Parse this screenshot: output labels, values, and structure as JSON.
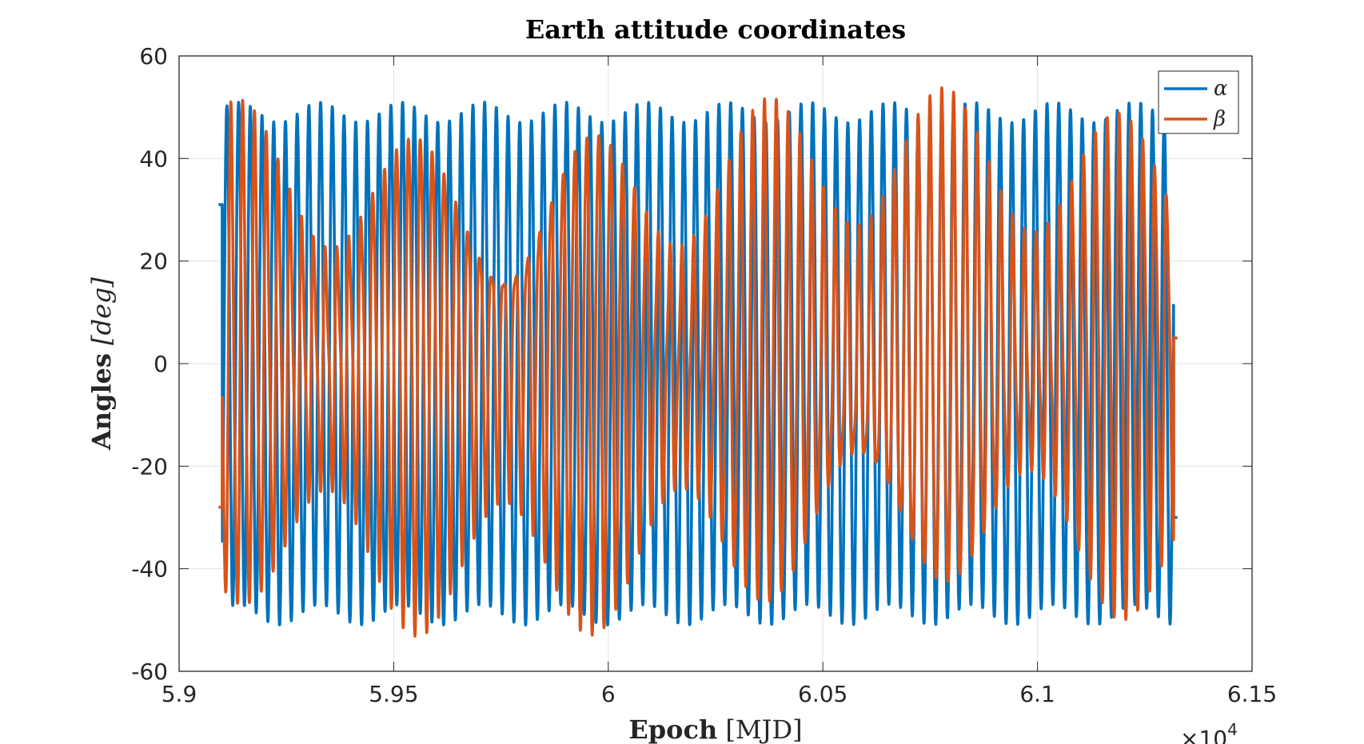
{
  "chart_data": {
    "type": "line",
    "title": "Earth attitude coordinates",
    "xlabel": {
      "bold": "Epoch",
      "rest": " [MJD]"
    },
    "ylabel": {
      "bold": "Angles",
      "rest": " [deg]"
    },
    "xlim": [
      59000,
      61500
    ],
    "ylim": [
      -60,
      60
    ],
    "x_exponent_label": "×10",
    "x_exponent_power": "4",
    "xticks": [
      59000,
      59500,
      60000,
      60500,
      61000,
      61500
    ],
    "xtick_labels": [
      "5.9",
      "5.95",
      "6",
      "6.05",
      "6.1",
      "6.15"
    ],
    "yticks": [
      60,
      40,
      20,
      0,
      -20,
      -40,
      -60
    ],
    "ytick_labels": [
      "60",
      "40",
      "20",
      "0",
      "-20",
      "-40",
      "-60"
    ],
    "grid": true,
    "legend_position": "top-right",
    "series": [
      {
        "name": "α",
        "color": "#0072BD",
        "x_range": [
          59092,
          61326
        ],
        "amplitude": 49,
        "period_days": 27.3,
        "samples_per_day": 2,
        "start_value": 31,
        "end_value": -30
      },
      {
        "name": "β",
        "color": "#D95319",
        "x_range": [
          59092,
          61326
        ],
        "amplitude": 48,
        "period_days": 27.6,
        "samples_per_day": 2,
        "start_value": -28,
        "end_value": 5
      }
    ]
  }
}
